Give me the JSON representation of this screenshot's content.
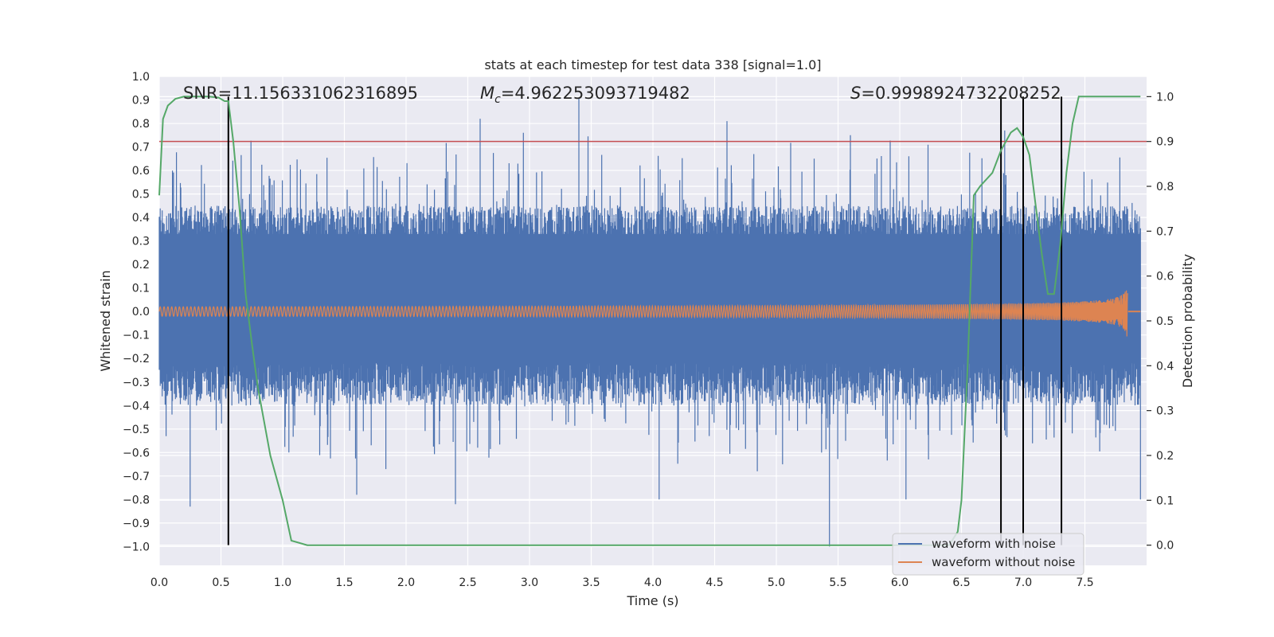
{
  "chart_data": {
    "type": "line",
    "title": "stats at each timestep for test data 338 [signal=1.0]",
    "xlabel": "Time (s)",
    "ylabel": "Whitened strain",
    "y2label": "Detection probability",
    "xlim": [
      0.0,
      8.0
    ],
    "ylim": [
      -1.08,
      1.0
    ],
    "y2lim": [
      -0.045,
      1.045
    ],
    "xticks": [
      0.0,
      0.5,
      1.0,
      1.5,
      2.0,
      2.5,
      3.0,
      3.5,
      4.0,
      4.5,
      5.0,
      5.5,
      6.0,
      6.5,
      7.0,
      7.5
    ],
    "yticks": [
      1.0,
      0.9,
      0.8,
      0.7,
      0.6,
      0.5,
      0.4,
      0.3,
      0.2,
      0.1,
      0.0,
      -0.1,
      -0.2,
      -0.3,
      -0.4,
      -0.5,
      -0.6,
      -0.7,
      -0.8,
      -0.9,
      -1.0
    ],
    "y2ticks": [
      1.0,
      0.9,
      0.8,
      0.7,
      0.6,
      0.5,
      0.4,
      0.3,
      0.2,
      0.1,
      0.0
    ],
    "annotations": {
      "snr": "SNR=11.156331062316895",
      "mc_symbol": "M",
      "mc_sub": "c",
      "mc_value": "=4.962253093719482",
      "s_symbol": "S",
      "s_value": "=0.9998924732208252"
    },
    "threshold": {
      "axis": "y2",
      "value": 0.9,
      "color": "#c44e52"
    },
    "event_markers": [
      0.56,
      6.82,
      7.0,
      7.31
    ],
    "series": [
      {
        "name": "waveform with noise",
        "color": "#4c72b0",
        "envelope": {
          "upper_typical": 0.45,
          "lower_typical": -0.4,
          "peak_max": 0.91,
          "peak_min": -1.0
        },
        "spikes": [
          [
            0.25,
            -0.83
          ],
          [
            0.56,
            0.55
          ],
          [
            1.05,
            -0.6
          ],
          [
            1.6,
            -0.78
          ],
          [
            2.4,
            -0.82
          ],
          [
            2.6,
            0.82
          ],
          [
            2.95,
            0.76
          ],
          [
            3.4,
            0.91
          ],
          [
            4.05,
            -0.8
          ],
          [
            4.6,
            0.81
          ],
          [
            5.05,
            -0.65
          ],
          [
            5.6,
            0.75
          ],
          [
            5.43,
            -1.0
          ],
          [
            6.05,
            -0.8
          ],
          [
            6.85,
            0.77
          ],
          [
            7.95,
            -0.8
          ]
        ]
      },
      {
        "name": "waveform without noise",
        "color": "#dd8452",
        "chirp": {
          "t_start": 0.0,
          "t_merger": 7.85,
          "amp_start": 0.02,
          "amp_peak": 0.22,
          "amp_peak_neg": -0.28
        }
      },
      {
        "name": "detection probability",
        "axis": "y2",
        "color": "#55a868",
        "x": [
          0.0,
          0.03,
          0.07,
          0.13,
          0.2,
          0.3,
          0.4,
          0.48,
          0.53,
          0.56,
          0.6,
          0.65,
          0.7,
          0.75,
          0.8,
          0.9,
          1.0,
          1.07,
          1.2,
          2.0,
          3.0,
          4.0,
          5.0,
          6.0,
          6.4,
          6.47,
          6.5,
          6.55,
          6.6,
          6.65,
          6.75,
          6.82,
          6.9,
          6.95,
          7.0,
          7.05,
          7.1,
          7.15,
          7.2,
          7.25,
          7.3,
          7.35,
          7.4,
          7.45,
          7.5,
          7.7,
          7.95
        ],
        "values": [
          0.78,
          0.95,
          0.98,
          0.995,
          1.0,
          1.0,
          1.0,
          0.998,
          0.99,
          0.99,
          0.9,
          0.75,
          0.56,
          0.45,
          0.35,
          0.2,
          0.1,
          0.01,
          0.0,
          0.0,
          0.0,
          0.0,
          0.0,
          0.0,
          0.0,
          0.03,
          0.1,
          0.4,
          0.78,
          0.8,
          0.83,
          0.88,
          0.92,
          0.93,
          0.91,
          0.87,
          0.76,
          0.65,
          0.56,
          0.56,
          0.67,
          0.83,
          0.94,
          1.0,
          1.0,
          1.0,
          1.0
        ]
      }
    ],
    "legend": {
      "position": "bottom-right",
      "entries": [
        "waveform with noise",
        "waveform without noise"
      ]
    }
  }
}
